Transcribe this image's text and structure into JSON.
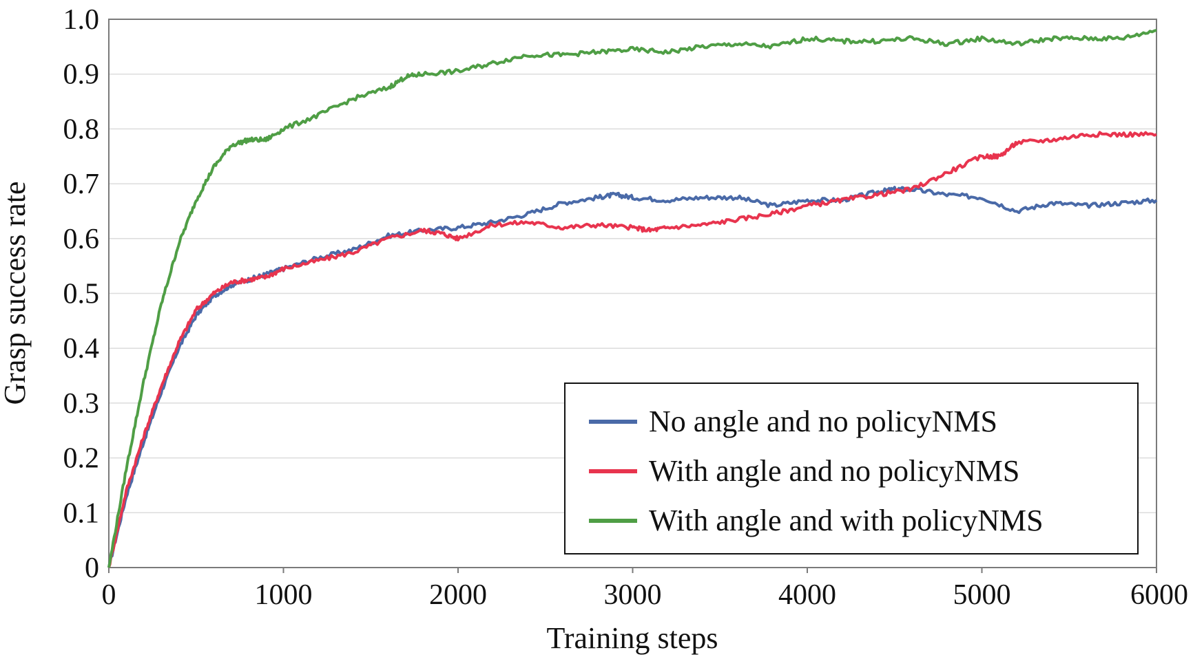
{
  "chart_data": {
    "type": "line",
    "title": "",
    "xlabel": "Training steps",
    "ylabel": "Grasp success rate",
    "xlim": [
      0,
      6000
    ],
    "ylim": [
      0,
      1.0
    ],
    "x_ticks": [
      0,
      1000,
      2000,
      3000,
      4000,
      5000,
      6000
    ],
    "x_tick_labels": [
      "0",
      "1000",
      "2000",
      "3000",
      "4000",
      "5000",
      "6000"
    ],
    "y_ticks": [
      0,
      0.1,
      0.2,
      0.3,
      0.4,
      0.5,
      0.6,
      0.7,
      0.8,
      0.9,
      1.0
    ],
    "y_tick_labels": [
      "0",
      "0.1",
      "0.2",
      "0.3",
      "0.4",
      "0.5",
      "0.6",
      "0.7",
      "0.8",
      "0.9",
      "1.0"
    ],
    "grid": "horizontal",
    "legend_position": "bottom-right",
    "series": [
      {
        "name": "No angle and no policyNMS",
        "color": "#4a6aa8",
        "x": [
          0,
          100,
          200,
          300,
          400,
          500,
          600,
          700,
          800,
          900,
          1000,
          1200,
          1400,
          1600,
          1800,
          2000,
          2200,
          2400,
          2600,
          2800,
          2900,
          3000,
          3200,
          3400,
          3600,
          3800,
          4000,
          4200,
          4400,
          4500,
          4600,
          4800,
          5000,
          5200,
          5400,
          5600,
          5800,
          6000
        ],
        "y": [
          0,
          0.13,
          0.23,
          0.32,
          0.4,
          0.46,
          0.495,
          0.515,
          0.525,
          0.535,
          0.545,
          0.565,
          0.58,
          0.605,
          0.615,
          0.62,
          0.63,
          0.645,
          0.665,
          0.675,
          0.68,
          0.675,
          0.67,
          0.675,
          0.675,
          0.66,
          0.67,
          0.67,
          0.685,
          0.69,
          0.69,
          0.68,
          0.675,
          0.65,
          0.665,
          0.66,
          0.665,
          0.67
        ]
      },
      {
        "name": "With angle and no policyNMS",
        "color": "#e8344e",
        "x": [
          0,
          100,
          200,
          300,
          400,
          500,
          600,
          700,
          800,
          900,
          1000,
          1200,
          1400,
          1600,
          1800,
          1900,
          2000,
          2200,
          2400,
          2600,
          2800,
          3000,
          3100,
          3200,
          3400,
          3600,
          3800,
          4000,
          4200,
          4400,
          4600,
          4800,
          5000,
          5100,
          5200,
          5400,
          5600,
          5800,
          6000
        ],
        "y": [
          0,
          0.14,
          0.24,
          0.33,
          0.41,
          0.47,
          0.5,
          0.52,
          0.525,
          0.53,
          0.545,
          0.56,
          0.575,
          0.6,
          0.615,
          0.61,
          0.6,
          0.625,
          0.63,
          0.62,
          0.625,
          0.62,
          0.615,
          0.62,
          0.625,
          0.635,
          0.645,
          0.66,
          0.67,
          0.68,
          0.69,
          0.72,
          0.75,
          0.75,
          0.775,
          0.78,
          0.79,
          0.79,
          0.79
        ]
      },
      {
        "name": "With angle and with policyNMS",
        "color": "#4f9e45",
        "x": [
          0,
          100,
          200,
          300,
          400,
          500,
          600,
          700,
          800,
          900,
          1000,
          1200,
          1400,
          1600,
          1700,
          1800,
          2000,
          2200,
          2400,
          2600,
          2800,
          3000,
          3200,
          3400,
          3600,
          3800,
          4000,
          4200,
          4400,
          4600,
          4800,
          5000,
          5200,
          5400,
          5600,
          5800,
          6000
        ],
        "y": [
          0,
          0.18,
          0.34,
          0.48,
          0.59,
          0.67,
          0.73,
          0.77,
          0.78,
          0.78,
          0.8,
          0.825,
          0.855,
          0.875,
          0.895,
          0.9,
          0.905,
          0.92,
          0.935,
          0.935,
          0.94,
          0.945,
          0.94,
          0.95,
          0.955,
          0.95,
          0.965,
          0.96,
          0.96,
          0.965,
          0.955,
          0.965,
          0.955,
          0.965,
          0.965,
          0.965,
          0.98
        ]
      }
    ]
  }
}
